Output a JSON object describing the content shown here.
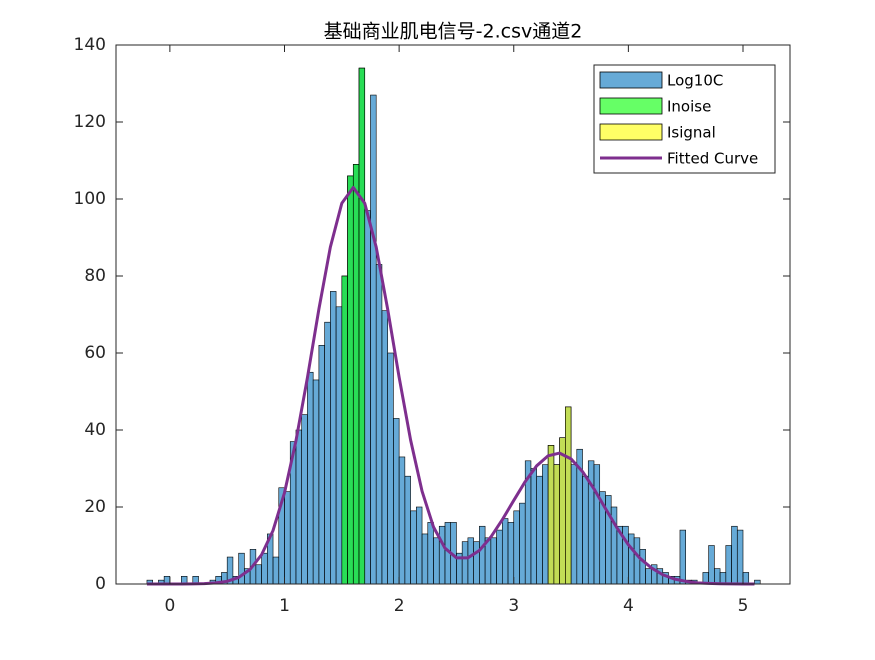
{
  "chart_data": {
    "type": "histogram",
    "title": "基础商业肌电信号-2.csv通道2",
    "xlim": [
      -0.47,
      5.41
    ],
    "ylim": [
      0,
      140
    ],
    "xticks": [
      0,
      1,
      2,
      3,
      4,
      5
    ],
    "yticks": [
      0,
      20,
      40,
      60,
      80,
      100,
      120,
      140
    ],
    "grid": false,
    "box": true,
    "legend": "northeast",
    "face_alpha": 0.6,
    "series": [
      {
        "name": "Log10C",
        "type": "histogram",
        "color": "#0072bd",
        "bins": [
          -0.2,
          -0.15,
          -0.1,
          -0.05,
          0,
          0.05,
          0.1,
          0.15,
          0.2,
          0.25,
          0.3,
          0.35,
          0.4,
          0.45,
          0.5,
          0.55,
          0.6,
          0.65,
          0.7,
          0.75,
          0.8,
          0.85,
          0.9,
          0.95,
          1,
          1.05,
          1.1,
          1.15,
          1.2,
          1.25,
          1.3,
          1.35,
          1.4,
          1.45,
          1.5,
          1.55,
          1.6,
          1.65,
          1.7,
          1.75,
          1.8,
          1.85,
          1.9,
          1.95,
          2,
          2.05,
          2.1,
          2.15,
          2.2,
          2.25,
          2.3,
          2.35,
          2.4,
          2.45,
          2.5,
          2.55,
          2.6,
          2.65,
          2.7,
          2.75,
          2.8,
          2.85,
          2.9,
          2.95,
          3,
          3.05,
          3.1,
          3.15,
          3.2,
          3.25,
          3.3,
          3.35,
          3.4,
          3.45,
          3.5,
          3.55,
          3.6,
          3.65,
          3.7,
          3.75,
          3.8,
          3.85,
          3.9,
          3.95,
          4,
          4.05,
          4.1,
          4.15,
          4.2,
          4.25,
          4.3,
          4.35,
          4.4,
          4.45,
          4.5,
          4.55,
          4.6,
          4.65,
          4.7,
          4.75,
          4.8,
          4.85,
          4.9,
          4.95,
          5,
          5.05,
          5.1,
          5.15
        ],
        "values": [
          1,
          0,
          1,
          2,
          0,
          0,
          2,
          0,
          2,
          0,
          0,
          1,
          2,
          3,
          7,
          2,
          8,
          4,
          9,
          5,
          8,
          13,
          7,
          25,
          24,
          37,
          40,
          44,
          55,
          53,
          62,
          68,
          76,
          72,
          80,
          106,
          109,
          134,
          97,
          127,
          83,
          71,
          60,
          43,
          33,
          28,
          19,
          20,
          13,
          16,
          12,
          15,
          16,
          16,
          8,
          11,
          12,
          11,
          15,
          12,
          12,
          14,
          17,
          16,
          19,
          21,
          32,
          30,
          28,
          31,
          36,
          31,
          38,
          46,
          31,
          35,
          28,
          32,
          31,
          24,
          23,
          20,
          15,
          15,
          13,
          12,
          9,
          4,
          5,
          4,
          3,
          2,
          2,
          14,
          1,
          1,
          0,
          3,
          10,
          4,
          3,
          10,
          15,
          14,
          3,
          0,
          1
        ]
      },
      {
        "name": "Inoise",
        "type": "histogram",
        "color": "#00ff00",
        "bins": [
          1.5,
          1.55,
          1.6,
          1.65,
          1.7
        ],
        "values": [
          80,
          106,
          109,
          134
        ]
      },
      {
        "name": "Isignal",
        "type": "histogram",
        "color": "#ffff00",
        "bins": [
          3.3,
          3.35,
          3.4,
          3.45,
          3.5
        ],
        "values": [
          36,
          31,
          38,
          46
        ]
      },
      {
        "name": "Fitted Curve",
        "type": "line",
        "color": "#7e2f8e",
        "x": [
          -0.2,
          -0.1,
          0,
          0.1,
          0.2,
          0.3,
          0.4,
          0.5,
          0.6,
          0.7,
          0.8,
          0.9,
          1,
          1.1,
          1.2,
          1.3,
          1.4,
          1.5,
          1.6,
          1.7,
          1.8,
          1.9,
          2,
          2.1,
          2.2,
          2.3,
          2.4,
          2.5,
          2.6,
          2.7,
          2.8,
          2.9,
          3,
          3.1,
          3.2,
          3.3,
          3.4,
          3.5,
          3.6,
          3.7,
          3.8,
          3.9,
          4,
          4.1,
          4.2,
          4.3,
          4.4,
          4.5,
          4.6,
          4.7,
          4.8,
          4.9,
          5,
          5.1
        ],
        "values": [
          0,
          0,
          0,
          0,
          0.03,
          0.1,
          0.3,
          0.7,
          1.7,
          3.8,
          7.6,
          13.9,
          23.7,
          37.2,
          53.6,
          71.4,
          87.5,
          98.9,
          103,
          98.9,
          87.5,
          71.4,
          53.7,
          37.4,
          24.1,
          14.8,
          9.3,
          6.8,
          6.8,
          8.7,
          12.2,
          16.7,
          21.7,
          26.6,
          30.7,
          33.3,
          34,
          32.5,
          29.2,
          24.7,
          19.6,
          14.6,
          10.2,
          6.7,
          4.2,
          2.4,
          1.3,
          0.7,
          0.3,
          0.15,
          0.06,
          0.02,
          0.01,
          0
        ]
      }
    ]
  }
}
